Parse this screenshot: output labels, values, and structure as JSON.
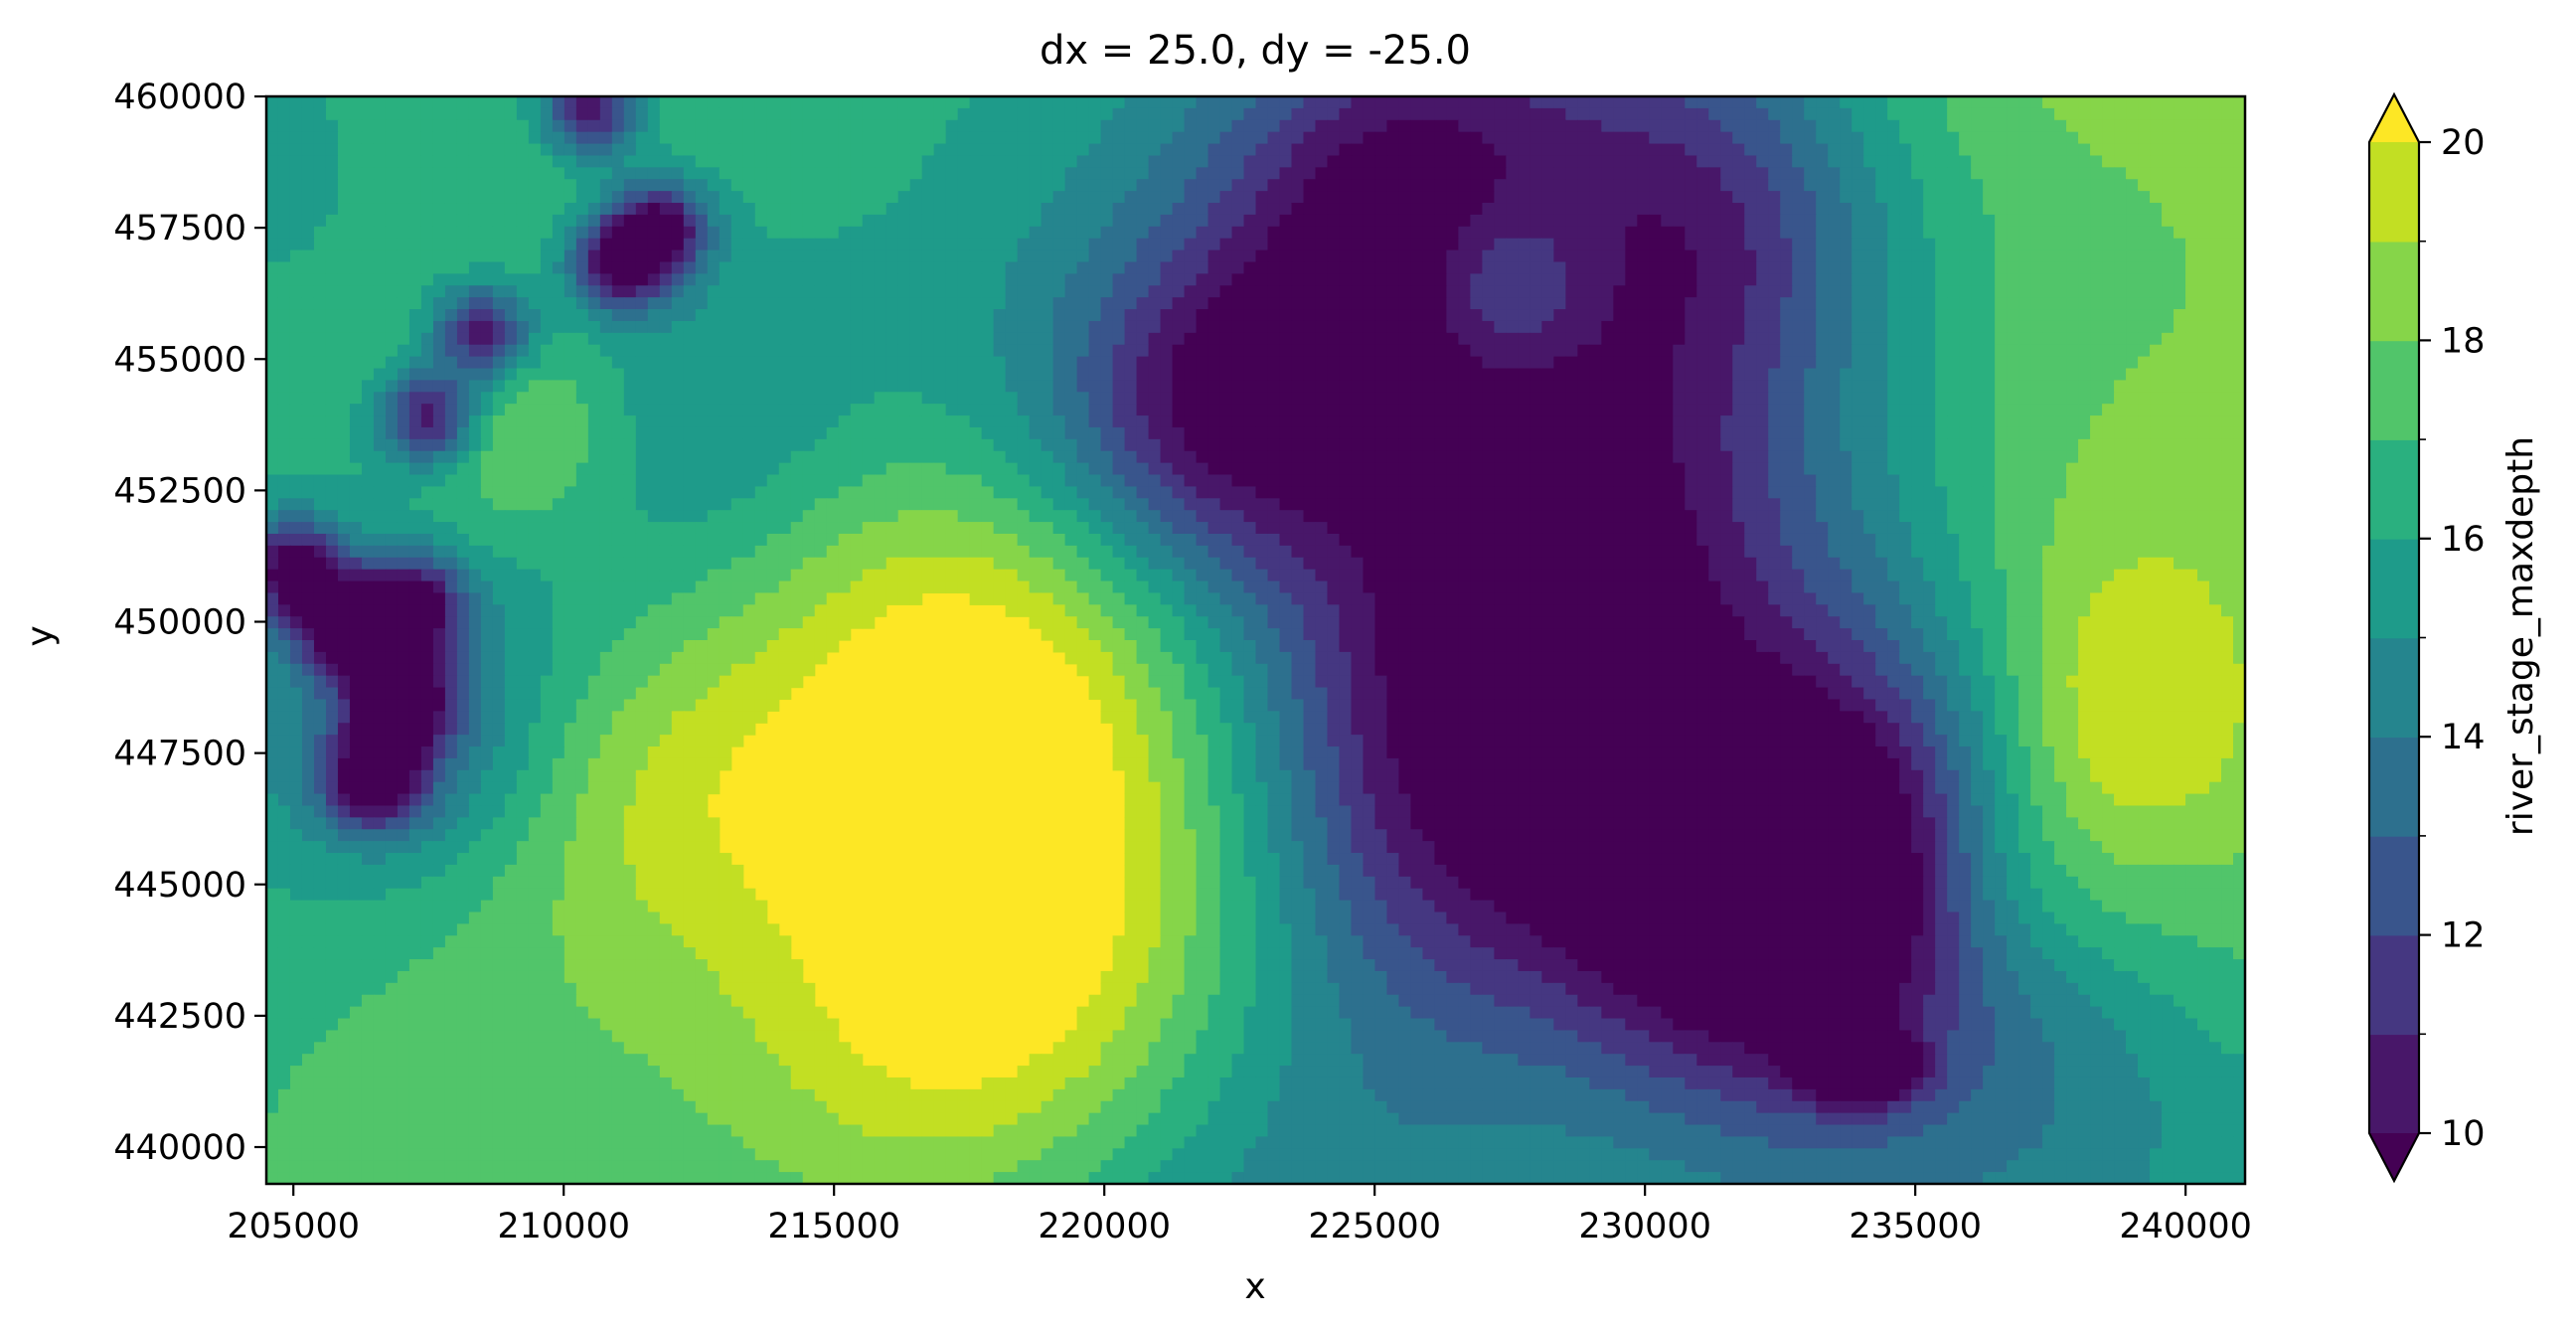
{
  "chart_data": {
    "type": "heatmap",
    "subtype": "filled-contour",
    "title": "dx = 25.0, dy = -25.0",
    "xlabel": "x",
    "ylabel": "y",
    "xlim": [
      204500,
      241100
    ],
    "ylim": [
      439300,
      460000
    ],
    "x_ticks": [
      205000,
      210000,
      215000,
      220000,
      225000,
      230000,
      235000,
      240000
    ],
    "x_tick_labels": [
      "205000",
      "210000",
      "215000",
      "220000",
      "225000",
      "230000",
      "235000",
      "240000"
    ],
    "y_ticks": [
      440000,
      442500,
      445000,
      447500,
      450000,
      452500,
      455000,
      457500,
      460000
    ],
    "y_tick_labels": [
      "440000",
      "442500",
      "445000",
      "447500",
      "450000",
      "452500",
      "455000",
      "457500",
      "460000"
    ],
    "colorbar": {
      "label": "river_stage_maxdepth",
      "colormap": "viridis",
      "extend": "both",
      "vmin": 10,
      "vmax": 20,
      "levels": [
        10,
        11,
        12,
        13,
        14,
        15,
        16,
        17,
        18,
        19,
        20
      ],
      "major_ticks": [
        10,
        12,
        14,
        16,
        18,
        20
      ],
      "major_tick_labels": [
        "10",
        "12",
        "14",
        "16",
        "18",
        "20"
      ],
      "minor_ticks": [
        11,
        13,
        15,
        17,
        19
      ],
      "level_colors": [
        "#481769",
        "#453781",
        "#39558c",
        "#2d708e",
        "#25858e",
        "#1e9b8a",
        "#2ab07f",
        "#51c56a",
        "#86d549",
        "#c2df23"
      ],
      "under_color": "#440154",
      "over_color": "#fde725"
    },
    "field_features": [
      {
        "name": "river-channel",
        "points": [
          [
            205000,
            451000
          ],
          [
            206000,
            449900
          ],
          [
            207200,
            450300
          ],
          [
            207000,
            448500
          ],
          [
            206500,
            447000
          ],
          [
            207500,
            453900
          ],
          [
            208500,
            455500
          ],
          [
            211000,
            456800
          ],
          [
            211800,
            457500
          ],
          [
            210500,
            459800
          ]
        ]
      },
      {
        "name": "deep-pool-southeast",
        "x": 234000,
        "y": 441500,
        "value": 9.5
      },
      {
        "name": "high-ground-centre",
        "x": 218500,
        "y": 449000,
        "value": 21
      },
      {
        "name": "high-ground-south",
        "x": 217000,
        "y": 442500,
        "value": 21
      },
      {
        "name": "depression-northeast",
        "x": 226000,
        "y": 457500,
        "value": 12
      }
    ],
    "grid": false,
    "legend": "none"
  }
}
